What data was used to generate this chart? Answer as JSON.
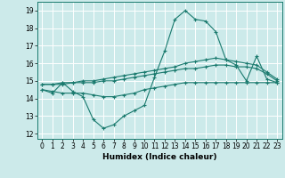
{
  "title": "",
  "xlabel": "Humidex (Indice chaleur)",
  "background_color": "#cceaea",
  "grid_color": "#ffffff",
  "line_color": "#1a7a6e",
  "xlim": [
    -0.5,
    23.5
  ],
  "ylim": [
    11.7,
    19.5
  ],
  "yticks": [
    12,
    13,
    14,
    15,
    16,
    17,
    18,
    19
  ],
  "xticks": [
    0,
    1,
    2,
    3,
    4,
    5,
    6,
    7,
    8,
    9,
    10,
    11,
    12,
    13,
    14,
    15,
    16,
    17,
    18,
    19,
    20,
    21,
    22,
    23
  ],
  "series": [
    {
      "x": [
        0,
        1,
        2,
        3,
        4,
        5,
        6,
        7,
        8,
        9,
        10,
        11,
        12,
        13,
        14,
        15,
        16,
        17,
        18,
        19,
        20,
        21,
        22,
        23
      ],
      "y": [
        14.5,
        14.3,
        14.9,
        14.4,
        14.1,
        12.8,
        12.3,
        12.5,
        13.0,
        13.3,
        13.6,
        15.2,
        16.7,
        18.5,
        19.0,
        18.5,
        18.4,
        17.8,
        16.2,
        15.9,
        15.0,
        16.4,
        15.1,
        14.9
      ]
    },
    {
      "x": [
        0,
        1,
        2,
        3,
        4,
        5,
        6,
        7,
        8,
        9,
        10,
        11,
        12,
        13,
        14,
        15,
        16,
        17,
        18,
        19,
        20,
        21,
        22,
        23
      ],
      "y": [
        14.8,
        14.8,
        14.9,
        14.9,
        15.0,
        15.0,
        15.1,
        15.2,
        15.3,
        15.4,
        15.5,
        15.6,
        15.7,
        15.8,
        16.0,
        16.1,
        16.2,
        16.3,
        16.2,
        16.1,
        16.0,
        15.9,
        15.5,
        15.1
      ]
    },
    {
      "x": [
        0,
        1,
        2,
        3,
        4,
        5,
        6,
        7,
        8,
        9,
        10,
        11,
        12,
        13,
        14,
        15,
        16,
        17,
        18,
        19,
        20,
        21,
        22,
        23
      ],
      "y": [
        14.8,
        14.8,
        14.8,
        14.9,
        14.9,
        14.9,
        15.0,
        15.0,
        15.1,
        15.2,
        15.3,
        15.4,
        15.5,
        15.6,
        15.7,
        15.7,
        15.8,
        15.9,
        15.9,
        15.8,
        15.8,
        15.7,
        15.4,
        15.0
      ]
    },
    {
      "x": [
        0,
        1,
        2,
        3,
        4,
        5,
        6,
        7,
        8,
        9,
        10,
        11,
        12,
        13,
        14,
        15,
        16,
        17,
        18,
        19,
        20,
        21,
        22,
        23
      ],
      "y": [
        14.5,
        14.4,
        14.3,
        14.3,
        14.3,
        14.2,
        14.1,
        14.1,
        14.2,
        14.3,
        14.5,
        14.6,
        14.7,
        14.8,
        14.9,
        14.9,
        14.9,
        14.9,
        14.9,
        14.9,
        14.9,
        14.9,
        14.9,
        14.9
      ]
    }
  ]
}
